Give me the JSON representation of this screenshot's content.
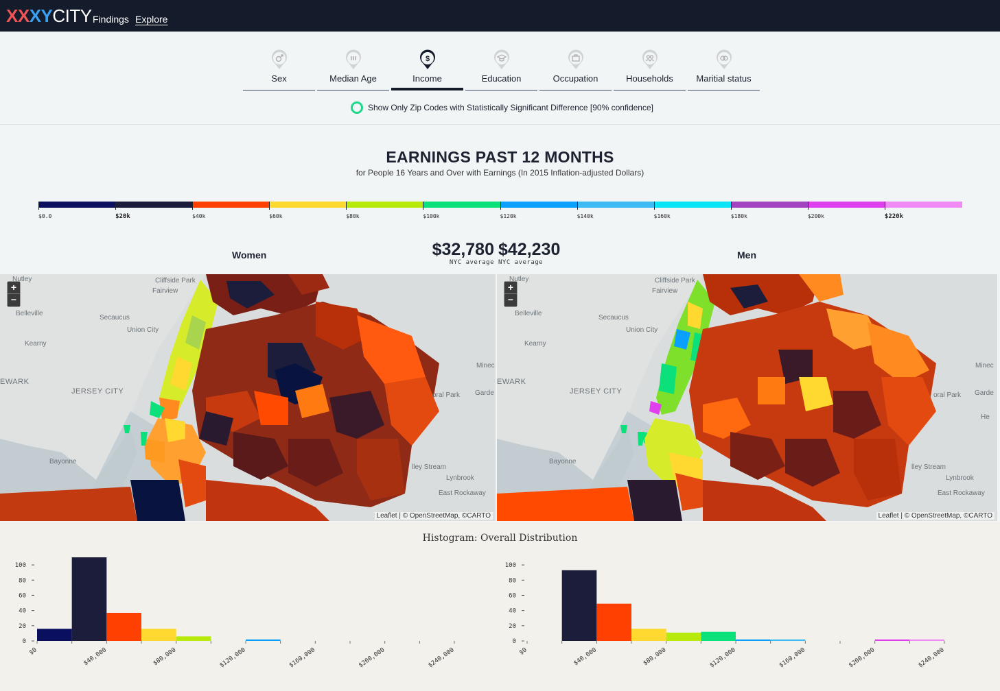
{
  "brand": {
    "x1": "XX",
    "x2": "XY",
    "city": "CITY"
  },
  "nav": {
    "findings": "Findings",
    "explore": "Explore"
  },
  "tabs": [
    {
      "label": "Sex",
      "icon": "sex-icon",
      "active": false
    },
    {
      "label": "Median Age",
      "icon": "age-icon",
      "active": false
    },
    {
      "label": "Income",
      "icon": "dollar-icon",
      "active": true
    },
    {
      "label": "Education",
      "icon": "graduation-cap-icon",
      "active": false
    },
    {
      "label": "Occupation",
      "icon": "briefcase-icon",
      "active": false
    },
    {
      "label": "Households",
      "icon": "people-icon",
      "active": false
    },
    {
      "label": "Maritial status",
      "icon": "rings-icon",
      "active": false
    }
  ],
  "significance_toggle": "Show Only Zip Codes with Statistically Significant Difference [90% confidence]",
  "heading": {
    "title": "EARNINGS PAST 12 MONTHS",
    "subtitle": "for People 16 Years and Over with Earnings (In 2015 Inflation-adjusted Dollars)"
  },
  "legend": {
    "colors": [
      "#0a0f5e",
      "#1c1d3a",
      "#ff4000",
      "#ffd830",
      "#b7ea0a",
      "#0be07a",
      "#0aa0ff",
      "#3dbbf5",
      "#0ae4f5",
      "#a243c0",
      "#e03ff0",
      "#f08af5"
    ],
    "ticks": [
      {
        "label": "$0.0",
        "bold": false
      },
      {
        "label": "$20k",
        "bold": true
      },
      {
        "label": "$40k",
        "bold": false
      },
      {
        "label": "$60k",
        "bold": false
      },
      {
        "label": "$80k",
        "bold": false
      },
      {
        "label": "$100k",
        "bold": false
      },
      {
        "label": "$120k",
        "bold": false
      },
      {
        "label": "$140k",
        "bold": false
      },
      {
        "label": "$160k",
        "bold": false
      },
      {
        "label": "$180k",
        "bold": false
      },
      {
        "label": "$200k",
        "bold": false
      },
      {
        "label": "$220k",
        "bold": true
      }
    ]
  },
  "women": {
    "label": "Women",
    "average": "$32,780",
    "average_caption": "NYC average"
  },
  "men": {
    "label": "Men",
    "average": "$42,230",
    "average_caption": "NYC average"
  },
  "map": {
    "zoom_in": "+",
    "zoom_out": "−",
    "attribution": "Leaflet | © OpenStreetMap, ©CARTO",
    "place_labels": [
      "Nutley",
      "Cliffside Park",
      "Fairview",
      "Belleville",
      "Secaucus",
      "Union City",
      "Kearny",
      "EWARK",
      "JERSEY CITY",
      "Bayonne",
      "Minec",
      "Garde",
      "oral Park",
      "He",
      "lley Stream",
      "Lynbrook",
      "East Rockaway"
    ]
  },
  "histogram": {
    "title": "Histogram: Overall Distribution",
    "y_ticks": [
      "100",
      "80",
      "60",
      "40",
      "20",
      "0"
    ],
    "x_ticks": [
      "$0",
      "$40,000",
      "$80,000",
      "$120,000",
      "$160,000",
      "$200,000",
      "$240,000"
    ]
  },
  "chart_data": [
    {
      "type": "bar",
      "name": "Women",
      "bin_width": 20000,
      "bin_starts": [
        0,
        20000,
        40000,
        60000,
        80000,
        100000,
        120000,
        140000,
        160000,
        180000,
        200000,
        220000
      ],
      "values": [
        16,
        110,
        37,
        16,
        6,
        0,
        2,
        0,
        0,
        0,
        0,
        0
      ],
      "ylim": [
        0,
        110
      ],
      "xlim": [
        0,
        240000
      ]
    },
    {
      "type": "bar",
      "name": "Men",
      "bin_width": 20000,
      "bin_starts": [
        0,
        20000,
        40000,
        60000,
        80000,
        100000,
        120000,
        140000,
        160000,
        180000,
        200000,
        220000
      ],
      "values": [
        0,
        93,
        49,
        16,
        11,
        12,
        2,
        2,
        0,
        0,
        2,
        2
      ],
      "ylim": [
        0,
        110
      ],
      "xlim": [
        0,
        240000
      ]
    }
  ]
}
